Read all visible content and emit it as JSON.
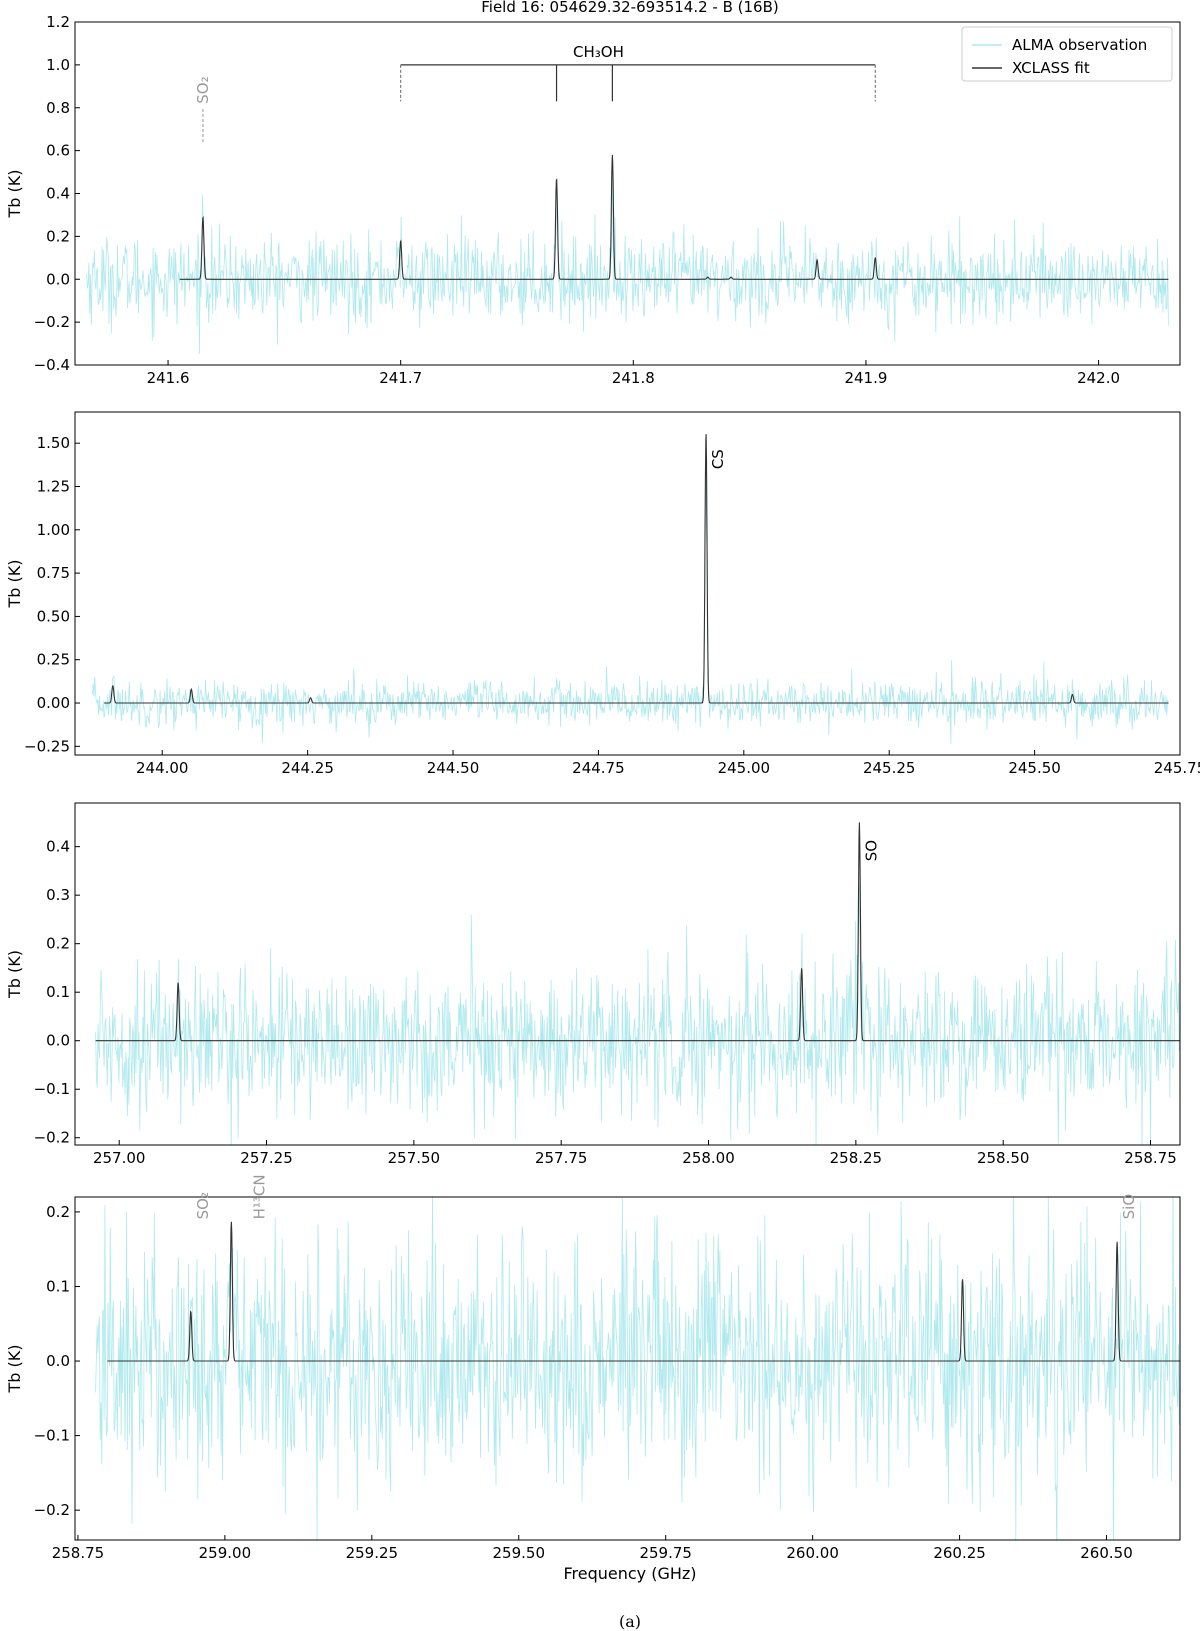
{
  "figure": {
    "title": "Field 16: 054629.32-693514.2 - B (16B)",
    "caption": "(a)",
    "xlabel": "Frequency (GHz)"
  },
  "legend": {
    "items": [
      {
        "label": "ALMA observation",
        "color": "#aee9ee"
      },
      {
        "label": "XCLASS fit",
        "color": "#333333"
      }
    ],
    "placement": "top-right"
  },
  "colors": {
    "observation": "#aee9ee",
    "fit": "#333333",
    "label_gray": "#999999",
    "label_dark": "#000000"
  },
  "chart_data": [
    {
      "type": "line",
      "panel": 1,
      "ylabel": "Tb (K)",
      "xlim": [
        241.56,
        242.035
      ],
      "ylim": [
        -0.4,
        1.2
      ],
      "xticks": [
        241.6,
        241.7,
        241.8,
        241.9,
        242.0
      ],
      "xtick_labels": [
        "241.6",
        "241.7",
        "241.8",
        "241.9",
        "242.0"
      ],
      "yticks": [
        -0.4,
        -0.2,
        0.0,
        0.2,
        0.4,
        0.6,
        0.8,
        1.0,
        1.2
      ],
      "ytick_labels": [
        "−0.4",
        "−0.2",
        "0.0",
        "0.2",
        "0.4",
        "0.6",
        "0.8",
        "1.0",
        "1.2"
      ],
      "obs_range": [
        241.565,
        242.03
      ],
      "obs_noise": 0.1,
      "fit_range": [
        241.605,
        242.03
      ],
      "fit_peaks": [
        {
          "x": 241.615,
          "y": 0.29
        },
        {
          "x": 241.7,
          "y": 0.18
        },
        {
          "x": 241.767,
          "y": 0.47
        },
        {
          "x": 241.791,
          "y": 0.58
        },
        {
          "x": 241.832,
          "y": 0.01
        },
        {
          "x": 241.842,
          "y": 0.01
        },
        {
          "x": 241.879,
          "y": 0.09
        },
        {
          "x": 241.904,
          "y": 0.1
        }
      ],
      "line_ids": [
        {
          "label": "SO₂",
          "x": 241.615,
          "gray": true,
          "tick_from": 0.64,
          "tick_to": 0.8
        }
      ],
      "bracket": {
        "label": "CH₃OH",
        "x_start": 241.7,
        "x_end": 241.904,
        "y": 1.0,
        "inner_x": [
          241.767,
          241.791
        ],
        "inner_bottom": 0.83,
        "outer_bottom": 0.83
      }
    },
    {
      "type": "line",
      "panel": 2,
      "ylabel": "Tb (K)",
      "xlim": [
        243.85,
        245.75
      ],
      "ylim": [
        -0.3,
        1.68
      ],
      "xticks": [
        244.0,
        244.25,
        244.5,
        244.75,
        245.0,
        245.25,
        245.5,
        245.75
      ],
      "xtick_labels": [
        "244.00",
        "244.25",
        "244.50",
        "244.75",
        "245.00",
        "245.25",
        "245.50",
        "245.75"
      ],
      "yticks": [
        -0.25,
        0.0,
        0.25,
        0.5,
        0.75,
        1.0,
        1.25,
        1.5
      ],
      "ytick_labels": [
        "−0.25",
        "0.00",
        "0.25",
        "0.50",
        "0.75",
        "1.00",
        "1.25",
        "1.50"
      ],
      "obs_range": [
        243.88,
        245.73
      ],
      "obs_noise": 0.065,
      "fit_range": [
        243.9,
        245.73
      ],
      "fit_peaks": [
        {
          "x": 243.915,
          "y": 0.1
        },
        {
          "x": 244.05,
          "y": 0.08
        },
        {
          "x": 244.255,
          "y": 0.03
        },
        {
          "x": 244.935,
          "y": 1.56
        },
        {
          "x": 245.565,
          "y": 0.05
        }
      ],
      "line_ids": [
        {
          "label": "CS",
          "x": 244.935,
          "gray": false,
          "label_y": 1.35
        }
      ]
    },
    {
      "type": "line",
      "panel": 3,
      "ylabel": "Tb (K)",
      "xlim": [
        256.925,
        258.8
      ],
      "ylim": [
        -0.215,
        0.49
      ],
      "xticks": [
        257.0,
        257.25,
        257.5,
        257.75,
        258.0,
        258.25,
        258.5,
        258.75
      ],
      "xtick_labels": [
        "257.00",
        "257.25",
        "257.50",
        "257.75",
        "258.00",
        "258.25",
        "258.50",
        "258.75"
      ],
      "yticks": [
        -0.2,
        -0.1,
        0.0,
        0.1,
        0.2,
        0.3,
        0.4
      ],
      "ytick_labels": [
        "−0.2",
        "−0.1",
        "0.0",
        "0.1",
        "0.2",
        "0.3",
        "0.4"
      ],
      "obs_range": [
        256.96,
        258.8
      ],
      "obs_noise": 0.075,
      "fit_range": [
        256.96,
        258.8
      ],
      "fit_peaks": [
        {
          "x": 257.1,
          "y": 0.12
        },
        {
          "x": 258.158,
          "y": 0.15
        },
        {
          "x": 258.256,
          "y": 0.45
        }
      ],
      "line_ids": [
        {
          "label": "SO",
          "x": 258.256,
          "gray": false,
          "label_y": 0.37
        }
      ]
    },
    {
      "type": "line",
      "panel": 4,
      "ylabel": "Tb (K)",
      "xlim": [
        258.745,
        260.625
      ],
      "ylim": [
        -0.24,
        0.22
      ],
      "xticks": [
        258.75,
        259.0,
        259.25,
        259.5,
        259.75,
        260.0,
        260.25,
        260.5
      ],
      "xtick_labels": [
        "258.75",
        "259.00",
        "259.25",
        "259.50",
        "259.75",
        "260.00",
        "260.25",
        "260.50"
      ],
      "yticks": [
        -0.2,
        -0.1,
        0.0,
        0.1,
        0.2
      ],
      "ytick_labels": [
        "−0.2",
        "−0.1",
        "0.0",
        "0.1",
        "0.2"
      ],
      "obs_range": [
        258.78,
        260.625
      ],
      "obs_noise": 0.085,
      "fit_range": [
        258.8,
        260.625
      ],
      "fit_peaks": [
        {
          "x": 258.942,
          "y": 0.067
        },
        {
          "x": 259.011,
          "y": 0.187
        },
        {
          "x": 260.255,
          "y": 0.11
        },
        {
          "x": 260.518,
          "y": 0.16
        }
      ],
      "line_ids": [
        {
          "label": "SO₂",
          "x": 258.942,
          "gray": true,
          "label_y": 0.19
        },
        {
          "label": "H¹³CN",
          "x": 259.011,
          "gray": true,
          "label_y": 0.19,
          "offset": 16
        },
        {
          "label": "SiO",
          "x": 260.518,
          "gray": true,
          "label_y": 0.19
        }
      ]
    }
  ]
}
